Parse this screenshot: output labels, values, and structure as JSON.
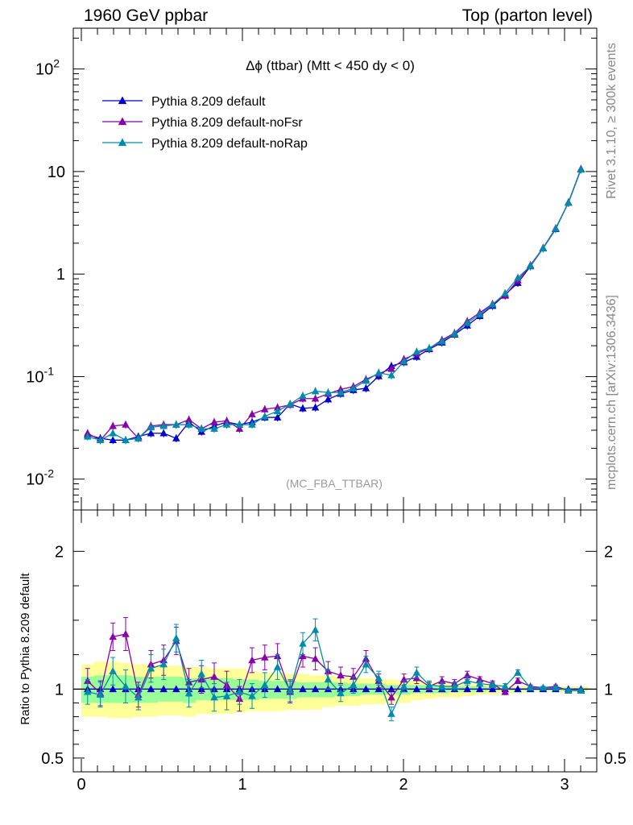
{
  "header": {
    "left": "1960 GeV ppbar",
    "right": "Top (parton level)"
  },
  "side_labels": {
    "top": "Rivet 3.1.10, ≥ 300k events",
    "bottom": "mcplots.cern.ch [arXiv:1306.3436]"
  },
  "chart_data": [
    {
      "type": "line",
      "title": "Δϕ (ttbar) (Mtt < 450 dy < 0)",
      "watermark": "(MC_FBA_TTBAR)",
      "xlabel": "",
      "ylabel": "",
      "xlim": [
        -0.05,
        3.2
      ],
      "ylim": [
        0.005,
        250
      ],
      "yscale": "log",
      "ytick_labels": [
        "10^-2",
        "10^-1",
        "1",
        "10",
        "10^2"
      ],
      "legend_position": "top-left",
      "x": [
        0.039,
        0.118,
        0.196,
        0.275,
        0.354,
        0.432,
        0.511,
        0.589,
        0.668,
        0.746,
        0.825,
        0.903,
        0.982,
        1.06,
        1.139,
        1.218,
        1.296,
        1.375,
        1.453,
        1.532,
        1.61,
        1.689,
        1.767,
        1.846,
        1.925,
        2.003,
        2.082,
        2.16,
        2.239,
        2.317,
        2.396,
        2.474,
        2.553,
        2.631,
        2.71,
        2.788,
        2.867,
        2.945,
        3.024,
        3.102
      ],
      "series": [
        {
          "name": "Pythia 8.209 default",
          "color": "#0000cc",
          "marker": "triangle",
          "values": [
            0.027,
            0.025,
            0.024,
            0.024,
            0.026,
            0.028,
            0.028,
            0.025,
            0.036,
            0.029,
            0.033,
            0.036,
            0.034,
            0.036,
            0.04,
            0.04,
            0.054,
            0.049,
            0.05,
            0.06,
            0.068,
            0.074,
            0.077,
            0.101,
            0.127,
            0.138,
            0.156,
            0.185,
            0.215,
            0.257,
            0.315,
            0.39,
            0.49,
            0.63,
            0.82,
            1.19,
            1.78,
            2.75,
            5.0,
            10.6
          ]
        },
        {
          "name": "Pythia 8.209 default-noFsr",
          "color": "#8800aa",
          "marker": "triangle",
          "values": [
            0.028,
            0.024,
            0.033,
            0.034,
            0.025,
            0.033,
            0.034,
            0.034,
            0.038,
            0.031,
            0.036,
            0.037,
            0.031,
            0.043,
            0.048,
            0.05,
            0.053,
            0.061,
            0.061,
            0.068,
            0.075,
            0.08,
            0.094,
            0.107,
            0.119,
            0.148,
            0.168,
            0.188,
            0.228,
            0.266,
            0.347,
            0.42,
            0.512,
            0.615,
            0.87,
            1.22,
            1.8,
            2.8,
            4.95,
            10.5
          ]
        },
        {
          "name": "Pythia 8.209 default-noRap",
          "color": "#008ca8",
          "marker": "triangle",
          "values": [
            0.026,
            0.024,
            0.028,
            0.024,
            0.025,
            0.032,
            0.033,
            0.034,
            0.034,
            0.031,
            0.031,
            0.034,
            0.034,
            0.034,
            0.041,
            0.046,
            0.054,
            0.065,
            0.072,
            0.07,
            0.07,
            0.077,
            0.091,
            0.109,
            0.103,
            0.141,
            0.175,
            0.19,
            0.221,
            0.262,
            0.334,
            0.405,
            0.505,
            0.65,
            0.92,
            1.2,
            1.78,
            2.78,
            4.96,
            10.45
          ]
        }
      ]
    },
    {
      "type": "line",
      "title": "",
      "ylabel": "Ratio to Pythia 8.209 default",
      "xlim": [
        -0.05,
        3.2
      ],
      "ylim": [
        0.4,
        2.3
      ],
      "xtick_labels": [
        "0",
        "1",
        "2",
        "3"
      ],
      "ytick_labels": [
        "0.5",
        "1",
        "2"
      ],
      "bands": [
        {
          "name": "2-sigma",
          "color": "#ffff99",
          "lo": [
            0.8,
            0.8,
            0.79,
            0.79,
            0.8,
            0.8,
            0.81,
            0.81,
            0.8,
            0.82,
            0.82,
            0.82,
            0.83,
            0.84,
            0.84,
            0.84,
            0.85,
            0.85,
            0.85,
            0.87,
            0.88,
            0.88,
            0.89,
            0.89,
            0.9,
            0.9,
            0.92,
            0.93,
            0.94,
            0.94,
            0.95,
            0.96,
            0.96,
            0.97,
            0.97,
            0.98,
            0.98,
            0.98,
            0.98,
            0.98
          ],
          "hi": [
            1.18,
            1.2,
            1.2,
            1.19,
            1.18,
            1.18,
            1.17,
            1.17,
            1.16,
            1.16,
            1.15,
            1.15,
            1.15,
            1.13,
            1.12,
            1.12,
            1.11,
            1.11,
            1.1,
            1.1,
            1.09,
            1.09,
            1.08,
            1.07,
            1.07,
            1.06,
            1.06,
            1.05,
            1.05,
            1.04,
            1.04,
            1.04,
            1.03,
            1.03,
            1.02,
            1.02,
            1.02,
            1.02,
            1.02,
            1.02
          ]
        },
        {
          "name": "1-sigma",
          "color": "#99ff99",
          "lo": [
            0.9,
            0.9,
            0.9,
            0.9,
            0.9,
            0.9,
            0.91,
            0.91,
            0.9,
            0.92,
            0.92,
            0.92,
            0.92,
            0.92,
            0.93,
            0.93,
            0.93,
            0.94,
            0.94,
            0.94,
            0.95,
            0.95,
            0.96,
            0.96,
            0.96,
            0.96,
            0.97,
            0.97,
            0.97,
            0.98,
            0.98,
            0.98,
            0.99,
            0.99,
            0.99,
            0.99,
            0.99,
            0.99,
            0.99,
            0.99
          ],
          "hi": [
            1.09,
            1.1,
            1.1,
            1.1,
            1.09,
            1.09,
            1.09,
            1.09,
            1.08,
            1.08,
            1.08,
            1.08,
            1.07,
            1.07,
            1.06,
            1.06,
            1.06,
            1.05,
            1.05,
            1.05,
            1.05,
            1.04,
            1.04,
            1.04,
            1.03,
            1.03,
            1.03,
            1.03,
            1.02,
            1.02,
            1.02,
            1.02,
            1.01,
            1.01,
            1.01,
            1.01,
            1.01,
            1.01,
            1.01,
            1.01
          ]
        }
      ],
      "series": [
        {
          "name": "Pythia 8.209 default",
          "color": "#0000cc",
          "marker": "triangle",
          "values": [
            1,
            1,
            1,
            1,
            1,
            1,
            1,
            1,
            1,
            1,
            1,
            1,
            1,
            1,
            1,
            1,
            1,
            1,
            1,
            1,
            1,
            1,
            1,
            1,
            1,
            1,
            1,
            1,
            1,
            1,
            1,
            1,
            1,
            1,
            1,
            1,
            1,
            1,
            1,
            1
          ]
        },
        {
          "name": "Pythia 8.209 default-noFsr",
          "color": "#8800aa",
          "marker": "triangle",
          "errors": [
            0.09,
            0.09,
            0.1,
            0.12,
            0.09,
            0.1,
            0.11,
            0.1,
            0.1,
            0.1,
            0.1,
            0.1,
            0.09,
            0.09,
            0.09,
            0.09,
            0.08,
            0.08,
            0.08,
            0.07,
            0.06,
            0.06,
            0.06,
            0.05,
            0.05,
            0.04,
            0.04,
            0.03,
            0.03,
            0.03,
            0.03,
            0.02,
            0.02,
            0.02,
            0.02,
            0.01,
            0.01,
            0.01,
            0.01,
            0.01
          ],
          "values": [
            1.06,
            0.97,
            1.38,
            1.4,
            0.96,
            1.18,
            1.21,
            1.35,
            1.05,
            1.07,
            1.09,
            1.03,
            0.93,
            1.21,
            1.23,
            1.24,
            0.98,
            1.24,
            1.22,
            1.13,
            1.1,
            1.09,
            1.22,
            1.06,
            0.94,
            1.07,
            1.08,
            1.02,
            1.06,
            1.04,
            1.1,
            1.07,
            1.04,
            0.98,
            1.06,
            1.02,
            1.01,
            1.02,
            0.99,
            0.99
          ]
        },
        {
          "name": "Pythia 8.209 default-noRap",
          "color": "#008ca8",
          "marker": "triangle",
          "errors": [
            0.09,
            0.09,
            0.1,
            0.12,
            0.09,
            0.1,
            0.11,
            0.1,
            0.1,
            0.1,
            0.1,
            0.1,
            0.09,
            0.09,
            0.09,
            0.09,
            0.08,
            0.08,
            0.08,
            0.07,
            0.06,
            0.06,
            0.06,
            0.05,
            0.05,
            0.04,
            0.04,
            0.03,
            0.03,
            0.03,
            0.03,
            0.02,
            0.02,
            0.02,
            0.02,
            0.01,
            0.01,
            0.01,
            0.01,
            0.01
          ],
          "values": [
            0.98,
            0.96,
            1.13,
            1.02,
            0.94,
            1.15,
            1.18,
            1.37,
            0.97,
            1.11,
            0.94,
            0.95,
            0.98,
            0.95,
            1.03,
            1.16,
            0.99,
            1.33,
            1.43,
            1.07,
            0.97,
            1.03,
            1.18,
            1.08,
            0.82,
            1.02,
            1.12,
            1.03,
            1.02,
            1.02,
            1.06,
            1.04,
            1.03,
            1.02,
            1.12,
            1.01,
            1.01,
            1.01,
            0.99,
            0.99
          ]
        }
      ]
    }
  ]
}
